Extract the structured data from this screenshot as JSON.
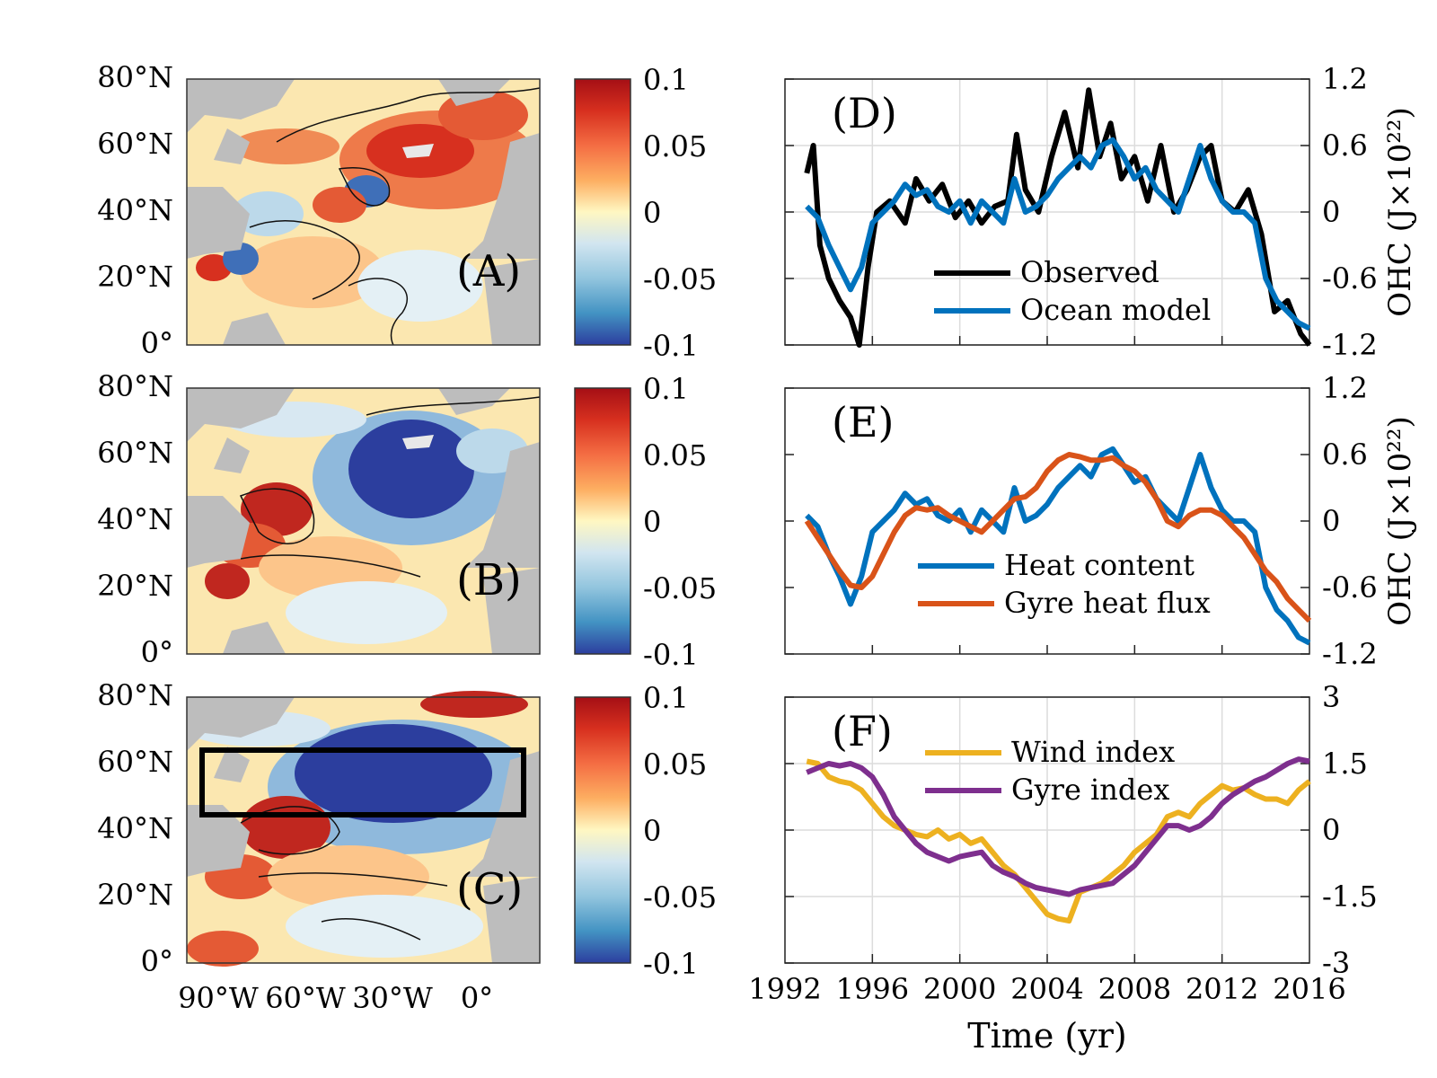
{
  "maps": [
    {
      "label": "(A)",
      "id": "map-a"
    },
    {
      "label": "(B)",
      "id": "map-b"
    },
    {
      "label": "(C)",
      "id": "map-c"
    }
  ],
  "map_axes": {
    "lat_ticks": [
      "80°N",
      "60°N",
      "40°N",
      "20°N",
      "0°"
    ],
    "lon_ticks": [
      "90°W",
      "60°W",
      "30°W",
      "0°"
    ]
  },
  "colorbar": {
    "tick_labels": [
      "0.1",
      "0.05",
      "0",
      "-0.05",
      "-0.1"
    ],
    "range": [
      -0.1,
      0.1
    ],
    "colors": [
      "#b2182b",
      "#d6604d",
      "#f4a582",
      "#fddbc7",
      "#fff5cc",
      "#d1e5f0",
      "#92c5de",
      "#4393c3",
      "#2c3e9e"
    ]
  },
  "colors": {
    "observed": "#000000",
    "ocean_model": "#0072bd",
    "heat_content": "#0072bd",
    "gyre_heat_flux": "#d95319",
    "wind_index": "#edb120",
    "gyre_index": "#7e2f8e",
    "land": "#bdbdbd"
  },
  "chart_data": [
    {
      "type": "line",
      "panel_label": "(D)",
      "ylabel": "OHC (J×10²²)",
      "ylim": [
        -1.2,
        1.2
      ],
      "yticks": [
        "1.2",
        "0.6",
        "0",
        "-0.6",
        "-1.2"
      ],
      "xlim": [
        1992,
        2016
      ],
      "grid": true,
      "legend_position": "bottom-center",
      "series": [
        {
          "name": "Observed",
          "color_key": "observed",
          "x": [
            1993.0,
            1993.3,
            1993.6,
            1994.0,
            1994.5,
            1995.0,
            1995.4,
            1995.8,
            1996.2,
            1996.8,
            1997.5,
            1998.0,
            1998.6,
            1999.2,
            1999.8,
            2000.4,
            2001.0,
            2001.6,
            2002.2,
            2002.6,
            2003.0,
            2003.6,
            2004.2,
            2004.8,
            2005.4,
            2005.9,
            2006.4,
            2006.9,
            2007.4,
            2008.0,
            2008.6,
            2009.2,
            2009.8,
            2010.4,
            2011.0,
            2011.5,
            2012.0,
            2012.6,
            2013.2,
            2013.8,
            2014.4,
            2015.0,
            2015.6,
            2016.0
          ],
          "y": [
            0.35,
            0.6,
            -0.3,
            -0.6,
            -0.8,
            -0.95,
            -1.2,
            -0.5,
            0.0,
            0.1,
            -0.1,
            0.3,
            0.1,
            0.25,
            -0.05,
            0.1,
            -0.1,
            0.05,
            0.1,
            0.7,
            0.2,
            0.0,
            0.5,
            0.9,
            0.4,
            1.1,
            0.5,
            0.8,
            0.3,
            0.5,
            0.1,
            0.6,
            0.0,
            0.2,
            0.5,
            0.6,
            0.1,
            0.0,
            0.2,
            -0.2,
            -0.9,
            -0.8,
            -1.1,
            -1.2
          ]
        },
        {
          "name": "Ocean model",
          "color_key": "ocean_model",
          "x": [
            1993.0,
            1993.5,
            1994.0,
            1994.5,
            1995.0,
            1995.5,
            1996.0,
            1996.5,
            1997.0,
            1997.5,
            1998.0,
            1998.5,
            1999.0,
            1999.5,
            2000.0,
            2000.5,
            2001.0,
            2001.5,
            2002.0,
            2002.5,
            2003.0,
            2003.5,
            2004.0,
            2004.5,
            2005.0,
            2005.5,
            2006.0,
            2006.5,
            2007.0,
            2007.5,
            2008.0,
            2008.5,
            2009.0,
            2009.5,
            2010.0,
            2010.5,
            2011.0,
            2011.5,
            2012.0,
            2012.5,
            2013.0,
            2013.5,
            2014.0,
            2014.5,
            2015.0,
            2015.5,
            2016.0
          ],
          "y": [
            0.05,
            -0.05,
            -0.3,
            -0.5,
            -0.7,
            -0.5,
            -0.1,
            0.0,
            0.1,
            0.25,
            0.15,
            0.2,
            0.05,
            0.0,
            0.1,
            -0.1,
            0.1,
            0.0,
            -0.1,
            0.3,
            0.0,
            0.05,
            0.15,
            0.3,
            0.4,
            0.5,
            0.4,
            0.6,
            0.65,
            0.5,
            0.3,
            0.4,
            0.2,
            0.1,
            0.0,
            0.3,
            0.6,
            0.3,
            0.1,
            0.0,
            0.0,
            -0.1,
            -0.6,
            -0.8,
            -0.9,
            -1.0,
            -1.05
          ]
        }
      ]
    },
    {
      "type": "line",
      "panel_label": "(E)",
      "ylabel": "OHC (J×10²²)",
      "ylim": [
        -1.2,
        1.2
      ],
      "yticks": [
        "1.2",
        "0.6",
        "0",
        "-0.6",
        "-1.2"
      ],
      "xlim": [
        1992,
        2016
      ],
      "grid": false,
      "legend_position": "bottom-center",
      "series": [
        {
          "name": "Heat content",
          "color_key": "heat_content",
          "x": [
            1993.0,
            1993.5,
            1994.0,
            1994.5,
            1995.0,
            1995.5,
            1996.0,
            1996.5,
            1997.0,
            1997.5,
            1998.0,
            1998.5,
            1999.0,
            1999.5,
            2000.0,
            2000.5,
            2001.0,
            2001.5,
            2002.0,
            2002.5,
            2003.0,
            2003.5,
            2004.0,
            2004.5,
            2005.0,
            2005.5,
            2006.0,
            2006.5,
            2007.0,
            2007.5,
            2008.0,
            2008.5,
            2009.0,
            2009.5,
            2010.0,
            2010.5,
            2011.0,
            2011.5,
            2012.0,
            2012.5,
            2013.0,
            2013.5,
            2014.0,
            2014.5,
            2015.0,
            2015.5,
            2016.0
          ],
          "y": [
            0.05,
            -0.05,
            -0.3,
            -0.5,
            -0.75,
            -0.5,
            -0.1,
            0.0,
            0.1,
            0.25,
            0.15,
            0.2,
            0.05,
            0.0,
            0.1,
            -0.1,
            0.1,
            0.0,
            -0.1,
            0.3,
            0.0,
            0.05,
            0.15,
            0.3,
            0.4,
            0.5,
            0.4,
            0.6,
            0.65,
            0.5,
            0.35,
            0.4,
            0.2,
            0.1,
            0.0,
            0.3,
            0.6,
            0.3,
            0.1,
            0.0,
            0.0,
            -0.1,
            -0.6,
            -0.8,
            -0.9,
            -1.05,
            -1.1
          ]
        },
        {
          "name": "Gyre heat flux",
          "color_key": "gyre_heat_flux",
          "x": [
            1993.0,
            1993.5,
            1994.0,
            1994.5,
            1995.0,
            1995.5,
            1996.0,
            1996.5,
            1997.0,
            1997.5,
            1998.0,
            1998.5,
            1999.0,
            1999.5,
            2000.0,
            2000.5,
            2001.0,
            2001.5,
            2002.0,
            2002.5,
            2003.0,
            2003.5,
            2004.0,
            2004.5,
            2005.0,
            2005.5,
            2006.0,
            2006.5,
            2007.0,
            2007.5,
            2008.0,
            2008.5,
            2009.0,
            2009.5,
            2010.0,
            2010.5,
            2011.0,
            2011.5,
            2012.0,
            2012.5,
            2013.0,
            2013.5,
            2014.0,
            2014.5,
            2015.0,
            2015.5,
            2016.0
          ],
          "y": [
            0.0,
            -0.15,
            -0.3,
            -0.45,
            -0.58,
            -0.6,
            -0.5,
            -0.3,
            -0.1,
            0.05,
            0.12,
            0.1,
            0.12,
            0.05,
            0.0,
            -0.05,
            -0.1,
            0.0,
            0.1,
            0.2,
            0.22,
            0.3,
            0.45,
            0.55,
            0.6,
            0.58,
            0.55,
            0.55,
            0.57,
            0.5,
            0.45,
            0.35,
            0.2,
            0.0,
            -0.05,
            0.05,
            0.1,
            0.1,
            0.05,
            -0.05,
            -0.15,
            -0.3,
            -0.45,
            -0.55,
            -0.7,
            -0.8,
            -0.9
          ]
        }
      ]
    },
    {
      "type": "line",
      "panel_label": "(F)",
      "xlabel": "Time (yr)",
      "ylim": [
        -3,
        3
      ],
      "yticks": [
        "3",
        "1.5",
        "0",
        "-1.5",
        "-3"
      ],
      "xlim": [
        1992,
        2016
      ],
      "xticks": [
        "1992",
        "1996",
        "2000",
        "2004",
        "2008",
        "2012",
        "2016"
      ],
      "grid": true,
      "legend_position": "top-center",
      "series": [
        {
          "name": "Wind index",
          "color_key": "wind_index",
          "x": [
            1993.0,
            1993.5,
            1994.0,
            1994.5,
            1995.0,
            1995.5,
            1996.0,
            1996.5,
            1997.0,
            1997.5,
            1998.0,
            1998.5,
            1999.0,
            1999.5,
            2000.0,
            2000.5,
            2001.0,
            2001.5,
            2002.0,
            2002.5,
            2003.0,
            2003.5,
            2004.0,
            2004.5,
            2005.0,
            2005.5,
            2006.0,
            2006.5,
            2007.0,
            2007.5,
            2008.0,
            2008.5,
            2009.0,
            2009.5,
            2010.0,
            2010.5,
            2011.0,
            2011.5,
            2012.0,
            2012.5,
            2013.0,
            2013.5,
            2014.0,
            2014.5,
            2015.0,
            2015.5,
            2016.0
          ],
          "y": [
            1.55,
            1.5,
            1.2,
            1.1,
            1.05,
            0.9,
            0.6,
            0.3,
            0.1,
            0.0,
            -0.1,
            -0.15,
            0.0,
            -0.2,
            -0.1,
            -0.3,
            -0.2,
            -0.5,
            -0.8,
            -1.0,
            -1.3,
            -1.6,
            -1.9,
            -2.0,
            -2.05,
            -1.4,
            -1.3,
            -1.2,
            -1.0,
            -0.8,
            -0.5,
            -0.3,
            -0.1,
            0.3,
            0.4,
            0.3,
            0.6,
            0.8,
            1.0,
            0.9,
            0.95,
            0.8,
            0.7,
            0.7,
            0.6,
            0.9,
            1.1
          ]
        },
        {
          "name": "Gyre index",
          "color_key": "gyre_index",
          "x": [
            1993.0,
            1993.5,
            1994.0,
            1994.5,
            1995.0,
            1995.5,
            1996.0,
            1996.5,
            1997.0,
            1997.5,
            1998.0,
            1998.5,
            1999.0,
            1999.5,
            2000.0,
            2000.5,
            2001.0,
            2001.5,
            2002.0,
            2002.5,
            2003.0,
            2003.5,
            2004.0,
            2004.5,
            2005.0,
            2005.5,
            2006.0,
            2006.5,
            2007.0,
            2007.5,
            2008.0,
            2008.5,
            2009.0,
            2009.5,
            2010.0,
            2010.5,
            2011.0,
            2011.5,
            2012.0,
            2012.5,
            2013.0,
            2013.5,
            2014.0,
            2014.5,
            2015.0,
            2015.5,
            2016.0
          ],
          "y": [
            1.3,
            1.4,
            1.5,
            1.45,
            1.5,
            1.4,
            1.2,
            0.8,
            0.3,
            0.0,
            -0.3,
            -0.5,
            -0.6,
            -0.7,
            -0.6,
            -0.55,
            -0.5,
            -0.8,
            -0.95,
            -1.05,
            -1.2,
            -1.3,
            -1.35,
            -1.4,
            -1.45,
            -1.35,
            -1.3,
            -1.25,
            -1.2,
            -1.0,
            -0.8,
            -0.5,
            -0.2,
            0.1,
            0.1,
            0.0,
            0.1,
            0.3,
            0.6,
            0.8,
            0.95,
            1.1,
            1.2,
            1.35,
            1.5,
            1.6,
            1.55
          ]
        }
      ]
    }
  ]
}
